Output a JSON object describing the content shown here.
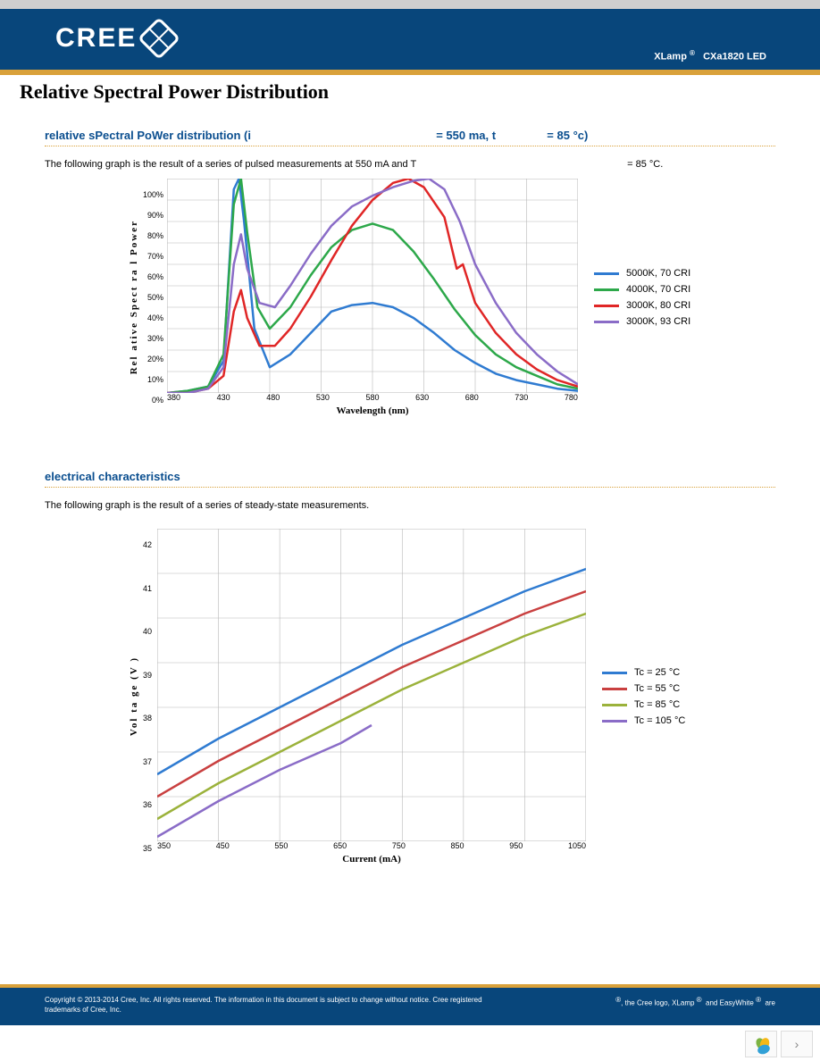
{
  "header": {
    "logo_text": "CREE",
    "product_left": "XLamp",
    "product_right": "CXa1820 LED"
  },
  "page_title": "Relative Spectral Power Distribution",
  "section1": {
    "title_1": "relative sPectral PoWer distribution (i",
    "title_2": "= 550 ma, t",
    "title_3": "= 85 °c)",
    "desc_1": "The following graph is the result of a series of pulsed measurements at 550 mA and T",
    "desc_2": "= 85 °C.",
    "chart": {
      "type": "line",
      "xlabel": "Wavelength (nm)",
      "ylabel": "Rel  ative   Spect   ra  l  Power",
      "xlim": [
        380,
        780
      ],
      "ylim": [
        0,
        100
      ],
      "xtick_labels": [
        "380",
        "430",
        "480",
        "530",
        "580",
        "630",
        "680",
        "730",
        "780"
      ],
      "ytick_labels": [
        "100%",
        "90%",
        "80%",
        "70%",
        "60%",
        "50%",
        "40%",
        "30%",
        "20%",
        "10%",
        "0%"
      ],
      "grid_color": "#b8b8b8",
      "background_color": "#ffffff",
      "line_width": 2.5,
      "series": [
        {
          "label": "5000K, 70 CRI",
          "color": "#2f7bd1",
          "points": [
            [
              380,
              0
            ],
            [
              400,
              1
            ],
            [
              420,
              3
            ],
            [
              435,
              15
            ],
            [
              445,
              95
            ],
            [
              450,
              100
            ],
            [
              455,
              80
            ],
            [
              465,
              30
            ],
            [
              480,
              12
            ],
            [
              500,
              18
            ],
            [
              520,
              28
            ],
            [
              540,
              38
            ],
            [
              560,
              41
            ],
            [
              580,
              42
            ],
            [
              600,
              40
            ],
            [
              620,
              35
            ],
            [
              640,
              28
            ],
            [
              660,
              20
            ],
            [
              680,
              14
            ],
            [
              700,
              9
            ],
            [
              720,
              6
            ],
            [
              740,
              4
            ],
            [
              760,
              2
            ],
            [
              780,
              1
            ]
          ]
        },
        {
          "label": "4000K, 70 CRI",
          "color": "#2da84a",
          "points": [
            [
              380,
              0
            ],
            [
              400,
              1
            ],
            [
              420,
              3
            ],
            [
              435,
              18
            ],
            [
              445,
              88
            ],
            [
              452,
              100
            ],
            [
              458,
              75
            ],
            [
              468,
              40
            ],
            [
              480,
              30
            ],
            [
              500,
              40
            ],
            [
              520,
              55
            ],
            [
              540,
              68
            ],
            [
              560,
              76
            ],
            [
              580,
              79
            ],
            [
              600,
              76
            ],
            [
              620,
              66
            ],
            [
              640,
              53
            ],
            [
              660,
              39
            ],
            [
              680,
              27
            ],
            [
              700,
              18
            ],
            [
              720,
              12
            ],
            [
              740,
              8
            ],
            [
              760,
              4
            ],
            [
              780,
              2
            ]
          ]
        },
        {
          "label": "3000K, 80 CRI",
          "color": "#e02626",
          "points": [
            [
              380,
              0
            ],
            [
              400,
              0
            ],
            [
              420,
              2
            ],
            [
              435,
              8
            ],
            [
              445,
              38
            ],
            [
              452,
              48
            ],
            [
              458,
              35
            ],
            [
              470,
              22
            ],
            [
              485,
              22
            ],
            [
              500,
              30
            ],
            [
              520,
              45
            ],
            [
              540,
              62
            ],
            [
              560,
              78
            ],
            [
              580,
              90
            ],
            [
              600,
              98
            ],
            [
              615,
              100
            ],
            [
              630,
              96
            ],
            [
              650,
              82
            ],
            [
              662,
              58
            ],
            [
              668,
              60
            ],
            [
              680,
              42
            ],
            [
              700,
              28
            ],
            [
              720,
              18
            ],
            [
              740,
              11
            ],
            [
              760,
              6
            ],
            [
              780,
              3
            ]
          ]
        },
        {
          "label": "3000K, 93 CRI",
          "color": "#8a6cc7",
          "points": [
            [
              380,
              0
            ],
            [
              400,
              0
            ],
            [
              420,
              2
            ],
            [
              435,
              12
            ],
            [
              445,
              60
            ],
            [
              452,
              74
            ],
            [
              458,
              58
            ],
            [
              470,
              42
            ],
            [
              485,
              40
            ],
            [
              500,
              50
            ],
            [
              520,
              65
            ],
            [
              540,
              78
            ],
            [
              560,
              87
            ],
            [
              580,
              92
            ],
            [
              600,
              96
            ],
            [
              620,
              99
            ],
            [
              635,
              100
            ],
            [
              650,
              95
            ],
            [
              665,
              80
            ],
            [
              680,
              60
            ],
            [
              700,
              42
            ],
            [
              720,
              28
            ],
            [
              740,
              18
            ],
            [
              760,
              10
            ],
            [
              780,
              4
            ]
          ]
        }
      ]
    }
  },
  "section2": {
    "title": "electrical characteristics",
    "desc": "The following graph is the result of a series of steady-state measurements.",
    "chart": {
      "type": "line",
      "xlabel": "Current (mA)",
      "ylabel": "Vol  ta  ge (V   )",
      "xlim": [
        350,
        1050
      ],
      "ylim": [
        35,
        42
      ],
      "xtick_labels": [
        "350",
        "450",
        "550",
        "650",
        "750",
        "850",
        "950",
        "1050"
      ],
      "ytick_labels": [
        "42",
        "41",
        "40",
        "39",
        "38",
        "37",
        "36",
        "35"
      ],
      "grid_color": "#b8b8b8",
      "background_color": "#ffffff",
      "line_width": 2.5,
      "series": [
        {
          "label": "Tc = 25 °C",
          "color": "#2f7bd1",
          "points": [
            [
              350,
              36.5
            ],
            [
              450,
              37.3
            ],
            [
              550,
              38.0
            ],
            [
              650,
              38.7
            ],
            [
              750,
              39.4
            ],
            [
              850,
              40.0
            ],
            [
              950,
              40.6
            ],
            [
              1050,
              41.1
            ]
          ]
        },
        {
          "label": "Tc = 55 °C",
          "color": "#c94040",
          "points": [
            [
              350,
              36.0
            ],
            [
              450,
              36.8
            ],
            [
              550,
              37.5
            ],
            [
              650,
              38.2
            ],
            [
              750,
              38.9
            ],
            [
              850,
              39.5
            ],
            [
              950,
              40.1
            ],
            [
              1050,
              40.6
            ]
          ]
        },
        {
          "label": "Tc = 85 °C",
          "color": "#9bb23b",
          "points": [
            [
              350,
              35.5
            ],
            [
              450,
              36.3
            ],
            [
              550,
              37.0
            ],
            [
              650,
              37.7
            ],
            [
              750,
              38.4
            ],
            [
              850,
              39.0
            ],
            [
              950,
              39.6
            ],
            [
              1050,
              40.1
            ]
          ]
        },
        {
          "label": "Tc = 105 °C",
          "color": "#8a6cc7",
          "points": [
            [
              350,
              35.1
            ],
            [
              450,
              35.9
            ],
            [
              550,
              36.6
            ],
            [
              650,
              37.2
            ],
            [
              700,
              37.6
            ]
          ]
        }
      ]
    }
  },
  "footer": {
    "left": "Copyright © 2013-2014 Cree, Inc. All rights reserved. The information in this document is subject to change without notice. Cree registered trademarks of Cree, Inc.",
    "right_1": ", the Cree logo, XLamp",
    "right_2": "and EasyWhite",
    "right_3": "are"
  }
}
